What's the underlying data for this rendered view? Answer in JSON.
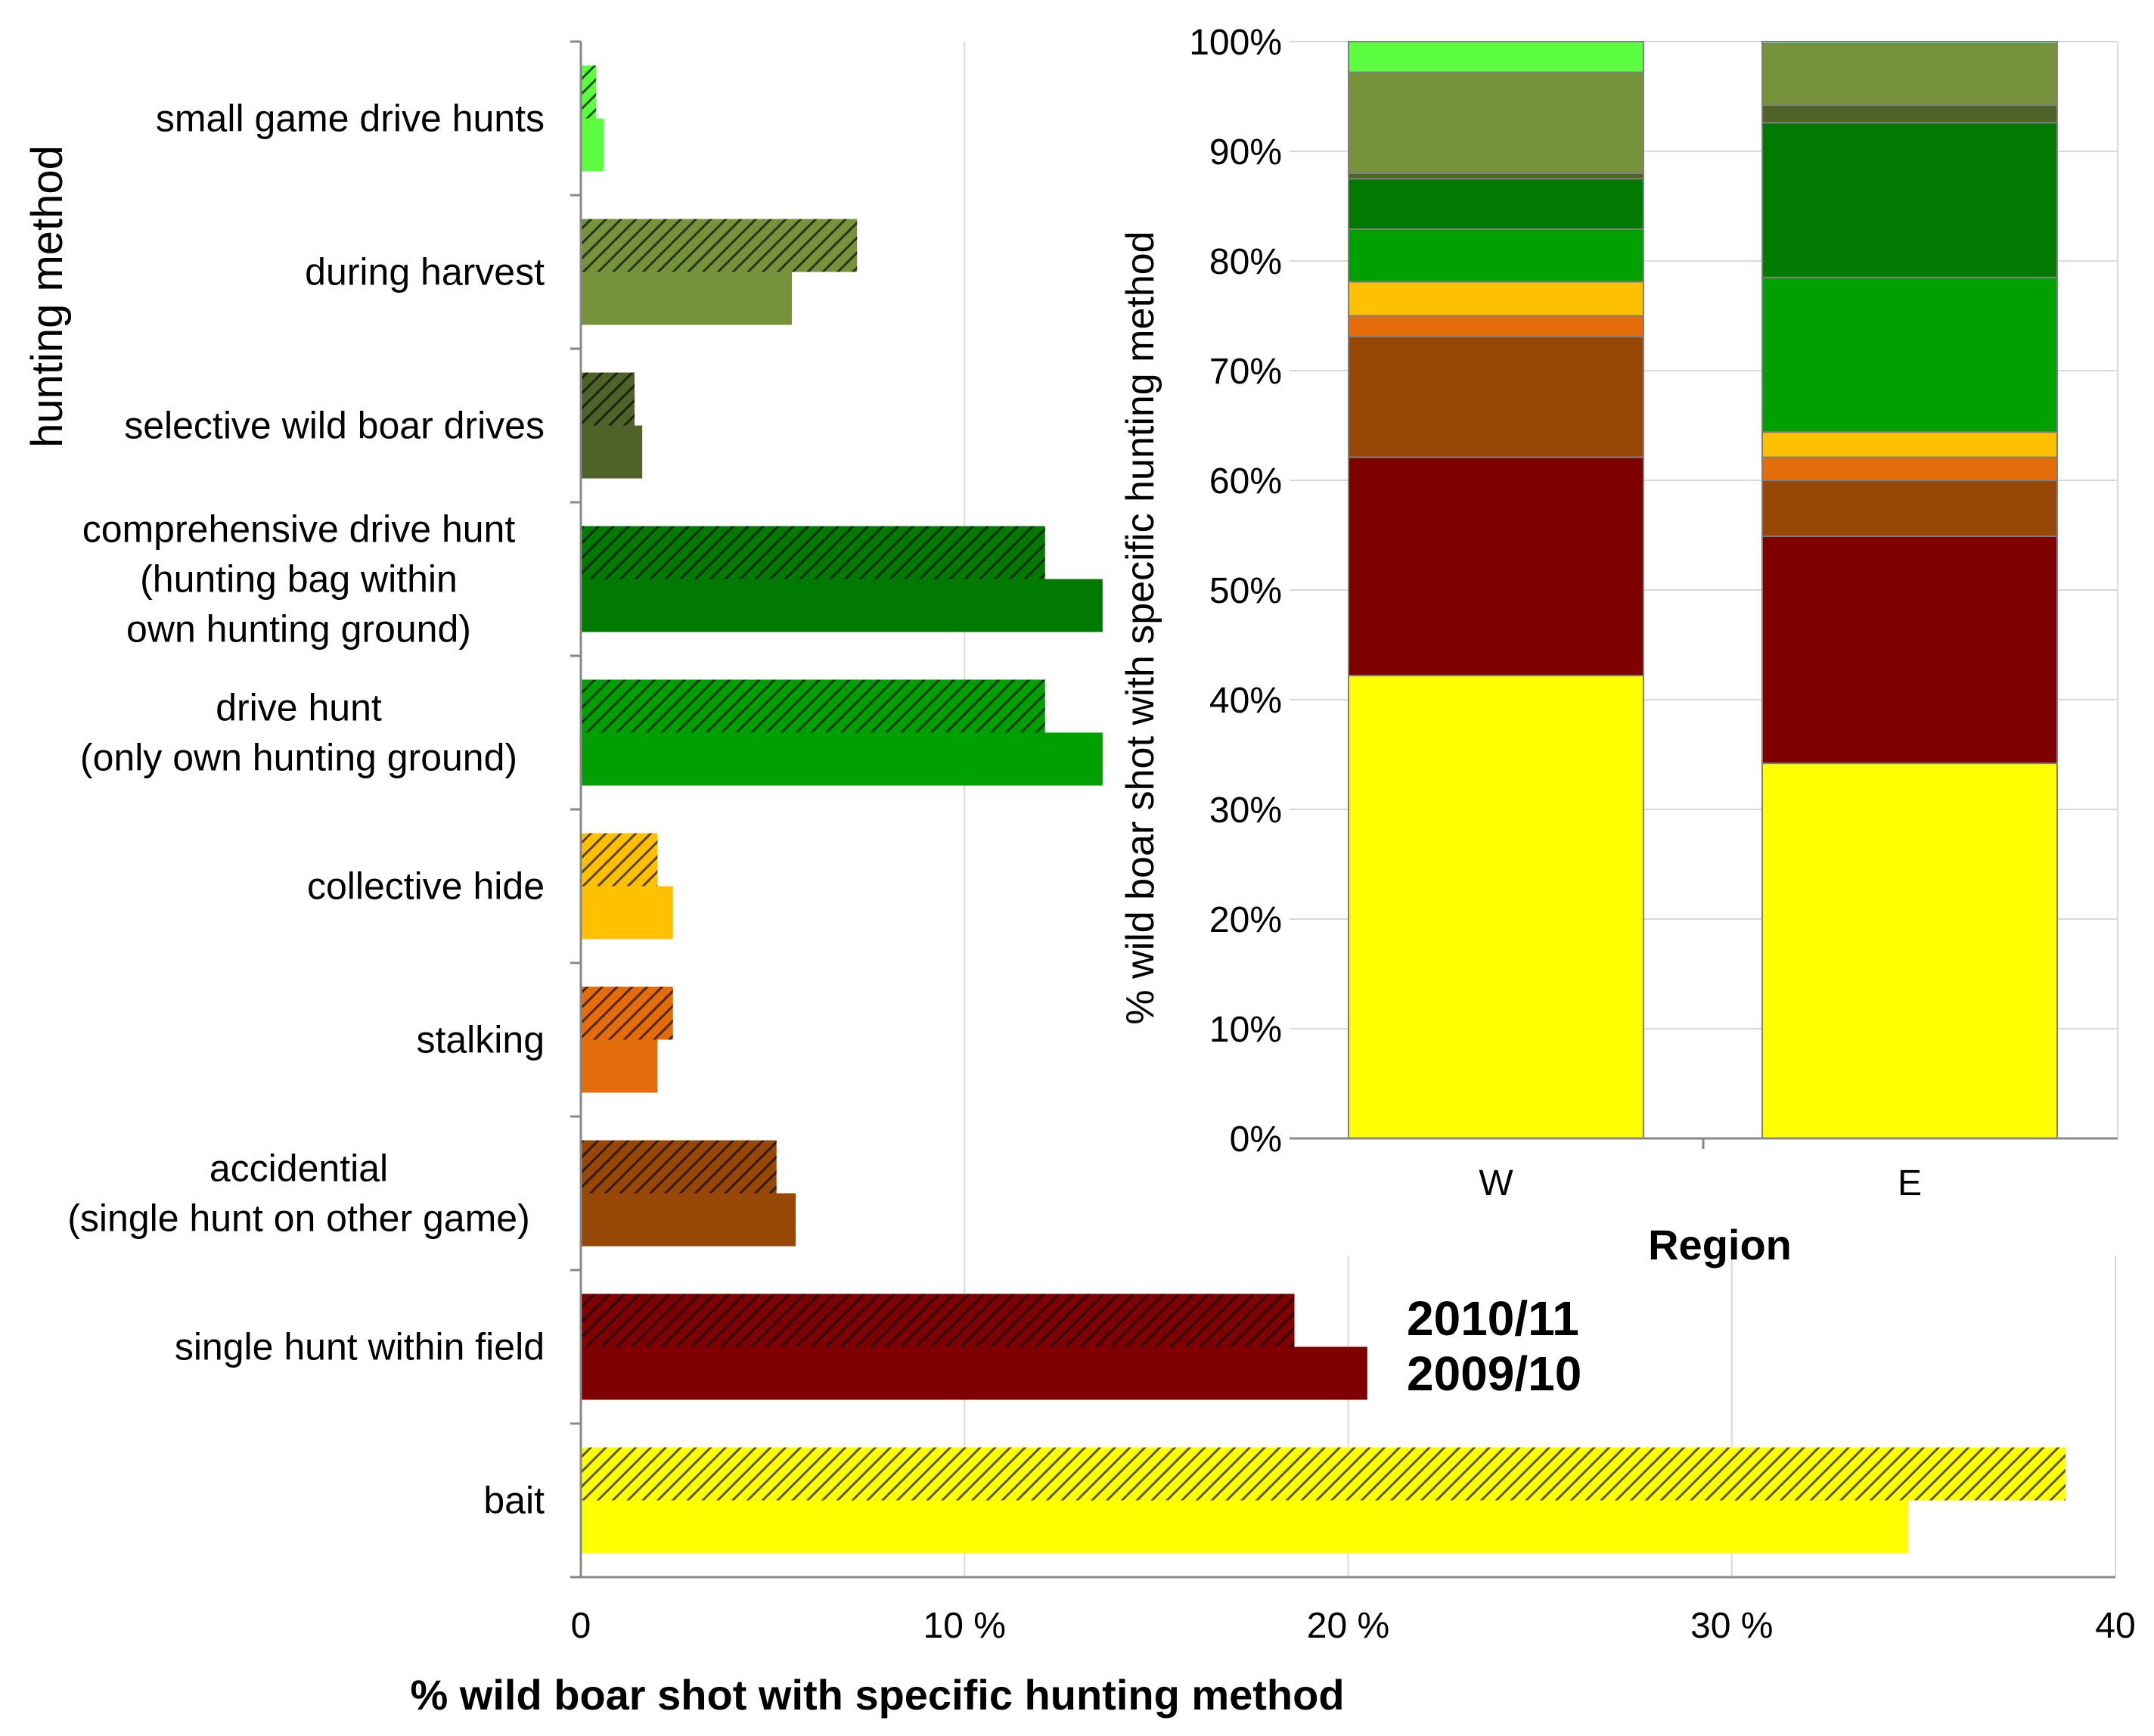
{
  "chart_data": [
    {
      "type": "bar",
      "orientation": "horizontal",
      "ylabel": "hunting method",
      "xlabel": "% wild boar shot with specific hunting method",
      "xlim": [
        0,
        40
      ],
      "x_ticks": [
        {
          "value": 0,
          "label": "0"
        },
        {
          "value": 10,
          "label": "10 %"
        },
        {
          "value": 20,
          "label": "20 %"
        },
        {
          "value": 30,
          "label": "30 %"
        },
        {
          "value": 40,
          "label": "40"
        }
      ],
      "grid": "vertical",
      "categories": [
        {
          "lines": [
            "small game drive hunts"
          ],
          "color": "#5CFF3F"
        },
        {
          "lines": [
            "during harvest"
          ],
          "color": "#76933C"
        },
        {
          "lines": [
            "selective wild boar drives"
          ],
          "color": "#4F6228"
        },
        {
          "lines": [
            "comprehensive drive hunt",
            "(hunting bag within",
            "own hunting ground)"
          ],
          "color": "#007A00"
        },
        {
          "lines": [
            "drive hunt",
            "(only own hunting ground)"
          ],
          "color": "#00A000"
        },
        {
          "lines": [
            "collective hide"
          ],
          "color": "#FFC000"
        },
        {
          "lines": [
            "stalking"
          ],
          "color": "#E46C0A"
        },
        {
          "lines": [
            "accidential",
            "(single hunt on other game)"
          ],
          "color": "#974706"
        },
        {
          "lines": [
            "single hunt within field"
          ],
          "color": "#7F0000"
        },
        {
          "lines": [
            "bait"
          ],
          "color": "#FFFF00"
        }
      ],
      "series": [
        {
          "name": "2010/11",
          "pattern": "hatched",
          "values": [
            0.4,
            7.2,
            1.4,
            12.1,
            12.1,
            2.0,
            2.4,
            5.1,
            18.6,
            38.7
          ]
        },
        {
          "name": "2009/10",
          "pattern": "solid",
          "values": [
            0.6,
            5.5,
            1.6,
            13.6,
            13.6,
            2.4,
            2.0,
            5.6,
            20.5,
            34.6
          ]
        }
      ],
      "legend": "inline labels beside the single hunt within field bars"
    },
    {
      "type": "bar",
      "stacked": true,
      "xlabel": "Region",
      "ylabel": "% wild boar shot with specific hunting method",
      "ylim": [
        0,
        100
      ],
      "y_ticks": [
        "0%",
        "10%",
        "20%",
        "30%",
        "40%",
        "50%",
        "60%",
        "70%",
        "80%",
        "90%",
        "100%"
      ],
      "categories": [
        "W",
        "E"
      ],
      "segments_bottom_to_top": [
        {
          "color": "#FFFF00",
          "values": [
            42.2,
            34.2
          ]
        },
        {
          "color": "#7F0000",
          "values": [
            19.9,
            20.7
          ]
        },
        {
          "color": "#974706",
          "values": [
            11.0,
            5.1
          ]
        },
        {
          "color": "#E46C0A",
          "values": [
            1.9,
            2.1
          ]
        },
        {
          "color": "#FFC000",
          "values": [
            3.1,
            2.3
          ]
        },
        {
          "color": "#00A000",
          "values": [
            4.8,
            14.1
          ]
        },
        {
          "color": "#007A00",
          "values": [
            4.6,
            14.1
          ]
        },
        {
          "color": "#4F6228",
          "values": [
            0.5,
            1.6
          ]
        },
        {
          "color": "#76933C",
          "values": [
            9.2,
            5.6
          ]
        },
        {
          "color": "#5CFF3F",
          "values": [
            2.8,
            0.2
          ]
        }
      ]
    }
  ]
}
